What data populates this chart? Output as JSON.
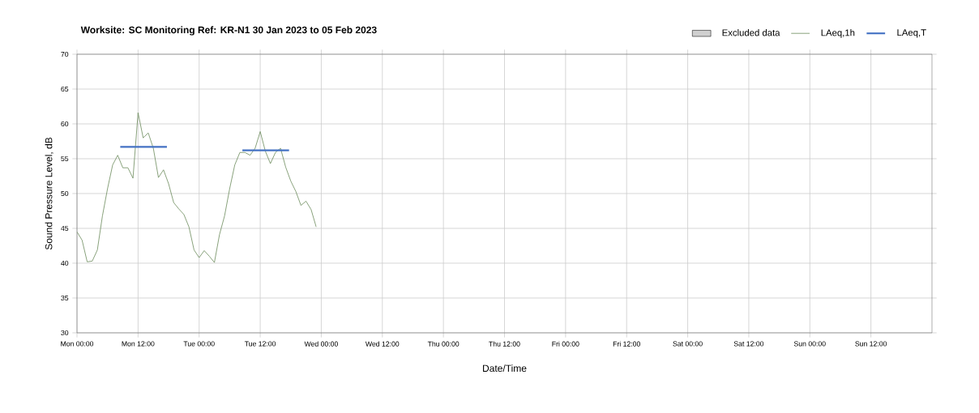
{
  "chart_data": {
    "type": "line",
    "title": "Worksite: SC   Monitoring Ref: KR-N1     30 Jan 2023 to 05 Feb 2023",
    "xlabel": "Date/Time",
    "ylabel": "Sound Pressure Level, dB",
    "xlim": [
      "2023-01-30T00:00",
      "2023-02-06T00:00"
    ],
    "ylim": [
      30,
      70
    ],
    "xticks": [
      {
        "value": "2023-01-30T00:00",
        "label": "Mon 00:00"
      },
      {
        "value": "2023-01-30T12:00",
        "label": "Mon 12:00"
      },
      {
        "value": "2023-01-31T00:00",
        "label": "Tue 00:00"
      },
      {
        "value": "2023-01-31T12:00",
        "label": "Tue 12:00"
      },
      {
        "value": "2023-02-01T00:00",
        "label": "Wed 00:00"
      },
      {
        "value": "2023-02-01T12:00",
        "label": "Wed 12:00"
      },
      {
        "value": "2023-02-02T00:00",
        "label": "Thu 00:00"
      },
      {
        "value": "2023-02-02T12:00",
        "label": "Thu 12:00"
      },
      {
        "value": "2023-02-03T00:00",
        "label": "Fri 00:00"
      },
      {
        "value": "2023-02-03T12:00",
        "label": "Fri 12:00"
      },
      {
        "value": "2023-02-04T00:00",
        "label": "Sat 00:00"
      },
      {
        "value": "2023-02-04T12:00",
        "label": "Sat 12:00"
      },
      {
        "value": "2023-02-05T00:00",
        "label": "Sun 00:00"
      },
      {
        "value": "2023-02-05T12:00",
        "label": "Sun 12:00"
      }
    ],
    "yticks": [
      30,
      35,
      40,
      45,
      50,
      55,
      60,
      65,
      70
    ],
    "grid": true,
    "legend": "top right",
    "x": [
      "2023-01-30T00:00",
      "2023-01-30T01:00",
      "2023-01-30T02:00",
      "2023-01-30T03:00",
      "2023-01-30T04:00",
      "2023-01-30T05:00",
      "2023-01-30T06:00",
      "2023-01-30T07:00",
      "2023-01-30T08:00",
      "2023-01-30T09:00",
      "2023-01-30T10:00",
      "2023-01-30T11:00",
      "2023-01-30T12:00",
      "2023-01-30T13:00",
      "2023-01-30T14:00",
      "2023-01-30T15:00",
      "2023-01-30T16:00",
      "2023-01-30T17:00",
      "2023-01-30T18:00",
      "2023-01-30T19:00",
      "2023-01-30T20:00",
      "2023-01-30T21:00",
      "2023-01-30T22:00",
      "2023-01-30T23:00",
      "2023-01-31T00:00",
      "2023-01-31T01:00",
      "2023-01-31T02:00",
      "2023-01-31T03:00",
      "2023-01-31T04:00",
      "2023-01-31T05:00",
      "2023-01-31T06:00",
      "2023-01-31T07:00",
      "2023-01-31T08:00",
      "2023-01-31T09:00",
      "2023-01-31T10:00",
      "2023-01-31T11:00",
      "2023-01-31T12:00",
      "2023-01-31T13:00",
      "2023-01-31T14:00",
      "2023-01-31T15:00",
      "2023-01-31T16:00",
      "2023-01-31T17:00",
      "2023-01-31T18:00",
      "2023-01-31T19:00",
      "2023-01-31T20:00",
      "2023-01-31T21:00",
      "2023-01-31T22:00",
      "2023-01-31T23:00"
    ],
    "series": [
      {
        "name": "Excluded data",
        "type": "area",
        "color": "#d0d0d0",
        "values": [
          null,
          null,
          null,
          null,
          null,
          null,
          null,
          null,
          null,
          null,
          null,
          null,
          null,
          null,
          null,
          null,
          null,
          null,
          null,
          null,
          null,
          null,
          null,
          null,
          null,
          null,
          null,
          null,
          null,
          null,
          null,
          null,
          null,
          null,
          null,
          null,
          null,
          null,
          null,
          null,
          null,
          null,
          null,
          null,
          null,
          null,
          null,
          null
        ]
      },
      {
        "name": "LAeq,1h",
        "color": "#6b8a5a",
        "values": [
          44.5,
          43.3,
          40.2,
          40.3,
          41.9,
          46.8,
          50.7,
          54.1,
          55.5,
          53.7,
          53.7,
          52.2,
          61.6,
          58.0,
          58.7,
          56.5,
          52.3,
          53.4,
          51.4,
          48.7,
          47.8,
          47.0,
          45.2,
          41.9,
          40.8,
          41.8,
          41.0,
          40.1,
          44.1,
          46.8,
          50.7,
          54.1,
          55.9,
          55.9,
          55.5,
          56.5,
          58.9,
          56.1,
          54.3,
          55.9,
          56.5,
          53.8,
          51.8,
          50.3,
          48.3,
          48.9,
          47.7,
          45.2
        ]
      },
      {
        "name": "LAeq,T",
        "color": "#4472c4",
        "x": [
          "2023-01-30T08:30",
          "2023-01-30T17:40",
          "2023-01-31T01:00",
          "2023-01-31T08:30",
          "2023-01-31T17:40"
        ],
        "values": [
          56.7,
          56.7,
          null,
          56.2,
          56.2
        ]
      }
    ]
  }
}
